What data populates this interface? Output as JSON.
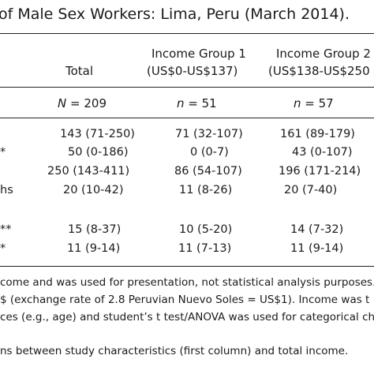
{
  "title": "of Male Sex Workers: Lima, Peru (March 2014).",
  "columns": [
    {
      "line1": "",
      "line2": "Total",
      "n_label": "N",
      "n_value": "= 209"
    },
    {
      "line1": "Income Group 1",
      "line2": "(US$0-US$137)",
      "n_label": "n",
      "n_value": "= 51"
    },
    {
      "line1": "Income Group 2",
      "line2": "(US$138-US$250",
      "n_label": "n",
      "n_value": "= 57"
    }
  ],
  "rows": [
    {
      "label": "",
      "cells": [
        "143 (71-250)",
        "71 (32-107)",
        "161 (89-179)"
      ]
    },
    {
      "label": "*",
      "cells": [
        "50 (0-186)",
        "0 (0-7)",
        "43 (0-107)"
      ]
    },
    {
      "label": "",
      "cells": [
        "250 (143-411)",
        "86 (54-107)",
        "196 (171-214)"
      ]
    },
    {
      "label": "hs",
      "cells": [
        "20 (10-42)",
        "11 (8-26)",
        "20 (7-40)"
      ]
    },
    {
      "label": "**",
      "cells": [
        "15 (8-37)",
        "10 (5-20)",
        "14 (7-32)"
      ]
    },
    {
      "label": "*",
      "cells": [
        "11 (9-14)",
        "11 (7-13)",
        "11 (9-14)"
      ]
    }
  ],
  "footnotes": [
    "come and was used for presentation, not statistical analysis purposes.",
    "$ (exchange rate of 2.8 Peruvian Nuevo Soles = US$1). Income was t",
    "ces (e.g., age) and student’s t test/ANOVA was used for categorical ch",
    "ns between study characteristics (first column) and total income."
  ]
}
